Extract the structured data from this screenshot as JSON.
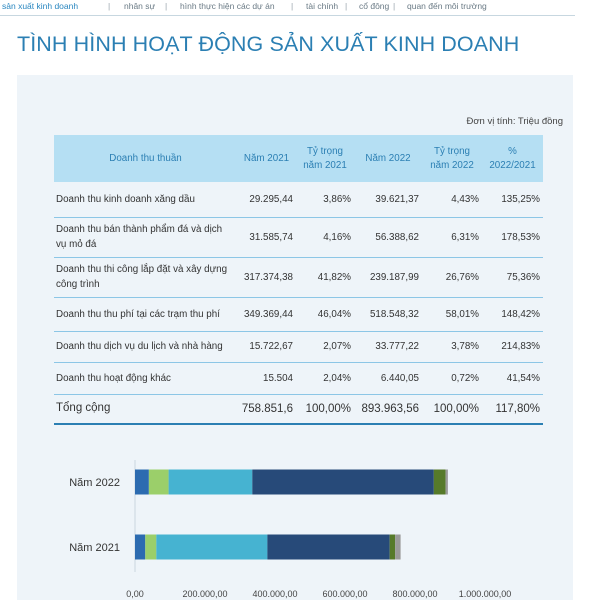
{
  "nav": {
    "items": [
      "sản xuất kinh doanh",
      "nhân sự",
      "hình thực hiện các dự án",
      "tài chính",
      "cổ đông",
      "quan đến môi trường"
    ],
    "separator": "|"
  },
  "page_title": "TÌNH HÌNH HOẠT ĐỘNG SẢN XUẤT KINH DOANH",
  "unit_label": "Đơn vị tính: Triệu đồng",
  "table": {
    "headers": [
      "Doanh thu thuần",
      "Năm 2021",
      "Tỷ trọng\nnăm 2021",
      "Năm 2022",
      "Tỷ trọng\nnăm 2022",
      "%\n2022/2021"
    ],
    "rows": [
      [
        "Doanh thu kinh doanh xăng dầu",
        "29.295,44",
        "3,86%",
        "39.621,37",
        "4,43%",
        "135,25%"
      ],
      [
        "Doanh thu bán thành phẩm đá và dịch vụ mỏ đá",
        "31.585,74",
        "4,16%",
        "56.388,62",
        "6,31%",
        "178,53%"
      ],
      [
        "Doanh thu thi công lắp đặt và xây dựng công trình",
        "317.374,38",
        "41,82%",
        "239.187,99",
        "26,76%",
        "75,36%"
      ],
      [
        "Doanh thu thu phí tại các trạm thu phí",
        "349.369,44",
        "46,04%",
        "518.548,32",
        "58,01%",
        "148,42%"
      ],
      [
        "Doanh thu dịch vụ du lịch và nhà hàng",
        "15.722,67",
        "2,07%",
        "33.777,22",
        "3,78%",
        "214,83%"
      ],
      [
        "Doanh thu hoạt động khác",
        "15.504",
        "2,04%",
        "6.440,05",
        "0,72%",
        "41,54%"
      ]
    ],
    "total": [
      "Tổng cộng",
      "758.851,6",
      "100,00%",
      "893.963,56",
      "100,00%",
      "117,80%"
    ]
  },
  "chart_data": {
    "type": "bar",
    "orientation": "horizontal",
    "stacked": true,
    "categories": [
      "Năm 2022",
      "Năm 2021"
    ],
    "series": [
      {
        "values": [
          39621.37,
          29295.44
        ],
        "color": "#2c6bb0"
      },
      {
        "values": [
          56388.62,
          31585.74
        ],
        "color": "#9bcf6a"
      },
      {
        "values": [
          239187.99,
          317374.38
        ],
        "color": "#46b3d1"
      },
      {
        "values": [
          518548.32,
          349369.44
        ],
        "color": "#274a79"
      },
      {
        "values": [
          33777.22,
          15722.67
        ],
        "color": "#567a2a"
      },
      {
        "values": [
          6440.05,
          15504
        ],
        "color": "#9a9a9a"
      }
    ],
    "xlim": [
      0,
      1000000
    ],
    "x_ticks": [
      0,
      200000,
      400000,
      600000,
      800000,
      1000000
    ],
    "x_tick_labels": [
      "0,00",
      "200.000,00",
      "400.000,00",
      "600.000,00",
      "800.000,00",
      "1.000.000,00"
    ],
    "grid": false
  }
}
